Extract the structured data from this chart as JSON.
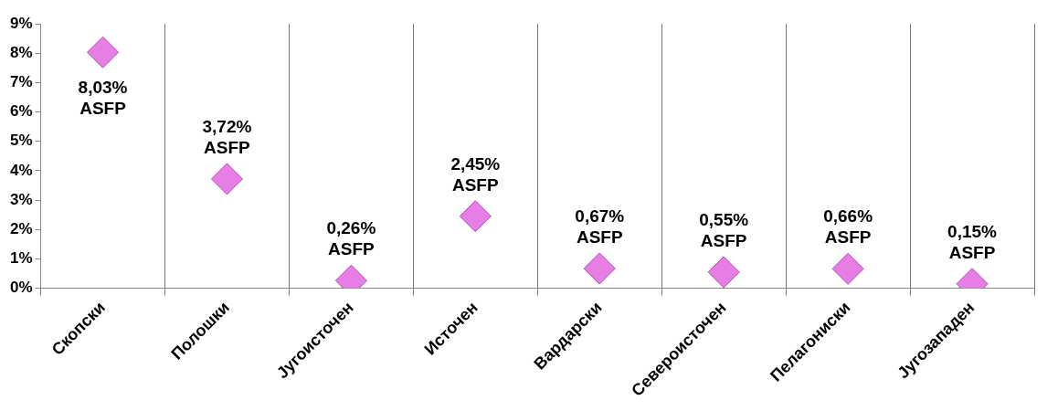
{
  "chart_data": {
    "type": "scatter",
    "categories": [
      "Скопски",
      "Полошки",
      "Југоисточен",
      "Источен",
      "Вардарски",
      "Североисточен",
      "Пелагониски",
      "Југозападен"
    ],
    "values": [
      8.03,
      3.72,
      0.26,
      2.45,
      0.67,
      0.55,
      0.66,
      0.15
    ],
    "value_labels": [
      "8,03% ASFP",
      "3,72% ASFP",
      "0,26% ASFP",
      "2,45% ASFP",
      "0,67% ASFP",
      "0,55% ASFP",
      "0,66% ASFP",
      "0,15% ASFP"
    ],
    "color": "#e67ee6",
    "marker": "diamond",
    "grid": "x",
    "ylim": [
      0,
      9
    ],
    "yticks": [
      {
        "value": 0,
        "label": "0%"
      },
      {
        "value": 1,
        "label": "1%"
      },
      {
        "value": 2,
        "label": "2%"
      },
      {
        "value": 3,
        "label": "3%"
      },
      {
        "value": 4,
        "label": "4%"
      },
      {
        "value": 5,
        "label": "5%"
      },
      {
        "value": 6,
        "label": "6%"
      },
      {
        "value": 7,
        "label": "7%"
      },
      {
        "value": 8,
        "label": "8%"
      },
      {
        "value": 9,
        "label": "9%"
      }
    ]
  }
}
